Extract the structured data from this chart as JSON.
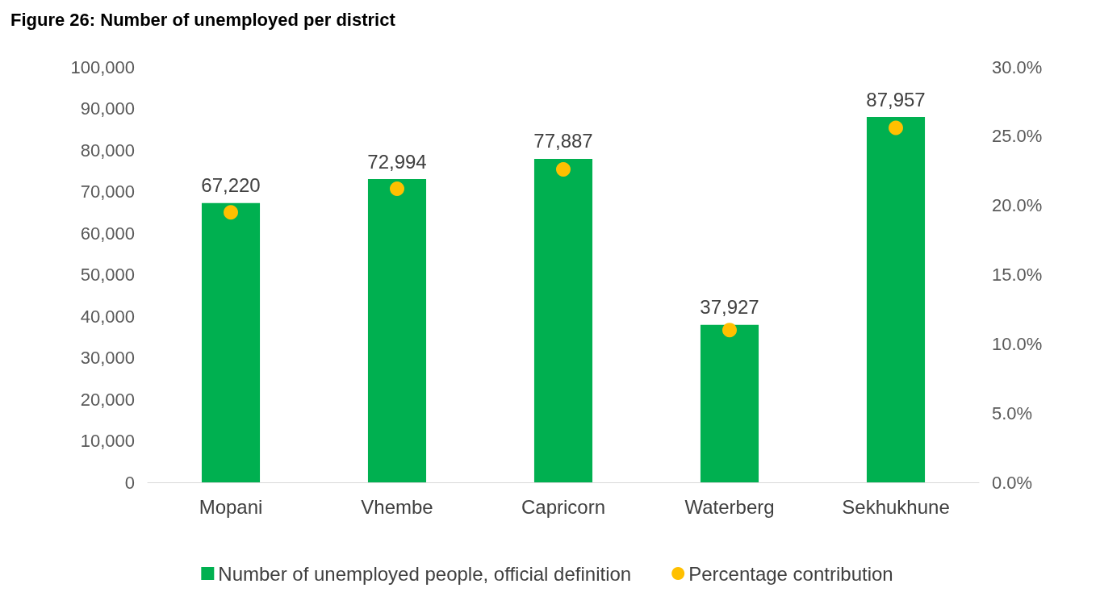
{
  "chart_data": {
    "type": "bar",
    "title": "Figure 26: Number of unemployed per district",
    "categories": [
      "Mopani",
      "Vhembe",
      "Capricorn",
      "Waterberg",
      "Sekhukhune"
    ],
    "series": [
      {
        "name": "Number of unemployed people, official definition",
        "color": "#00b050",
        "values": [
          67220,
          72994,
          77887,
          37927,
          87957
        ],
        "value_labels": [
          "67,220",
          "72,994",
          "77,887",
          "37,927",
          "87,957"
        ]
      },
      {
        "name": "Percentage contribution",
        "type": "scatter",
        "axis": "y2",
        "color": "#ffc000",
        "marker": "circle",
        "values": [
          19.5,
          21.2,
          22.6,
          11.0,
          25.6
        ]
      }
    ],
    "ylim": [
      0,
      100000
    ],
    "yticks": [
      0,
      {
        "value": 10000,
        "label": "10,000"
      },
      {
        "value": 20000,
        "label": "20,000"
      },
      {
        "value": 30000,
        "label": "30,000"
      },
      {
        "value": 40000,
        "label": "40,000"
      },
      {
        "value": 50000,
        "label": "50,000"
      },
      {
        "value": 60000,
        "label": "60,000"
      },
      {
        "value": 70000,
        "label": "70,000"
      },
      {
        "value": 80000,
        "label": "80,000"
      },
      {
        "value": 90000,
        "label": "90,000"
      },
      {
        "value": 100000,
        "label": "100,000"
      }
    ],
    "y2lim": [
      0,
      30
    ],
    "y2ticks": [
      {
        "value": 0,
        "label": "0.0%"
      },
      {
        "value": 5,
        "label": "5.0%"
      },
      {
        "value": 10,
        "label": "10.0%"
      },
      {
        "value": 15,
        "label": "15.0%"
      },
      {
        "value": 20,
        "label": "20.0%"
      },
      {
        "value": 25,
        "label": "25.0%"
      },
      {
        "value": 30,
        "label": "30.0%"
      }
    ],
    "grid": false,
    "legend": "bottom"
  }
}
